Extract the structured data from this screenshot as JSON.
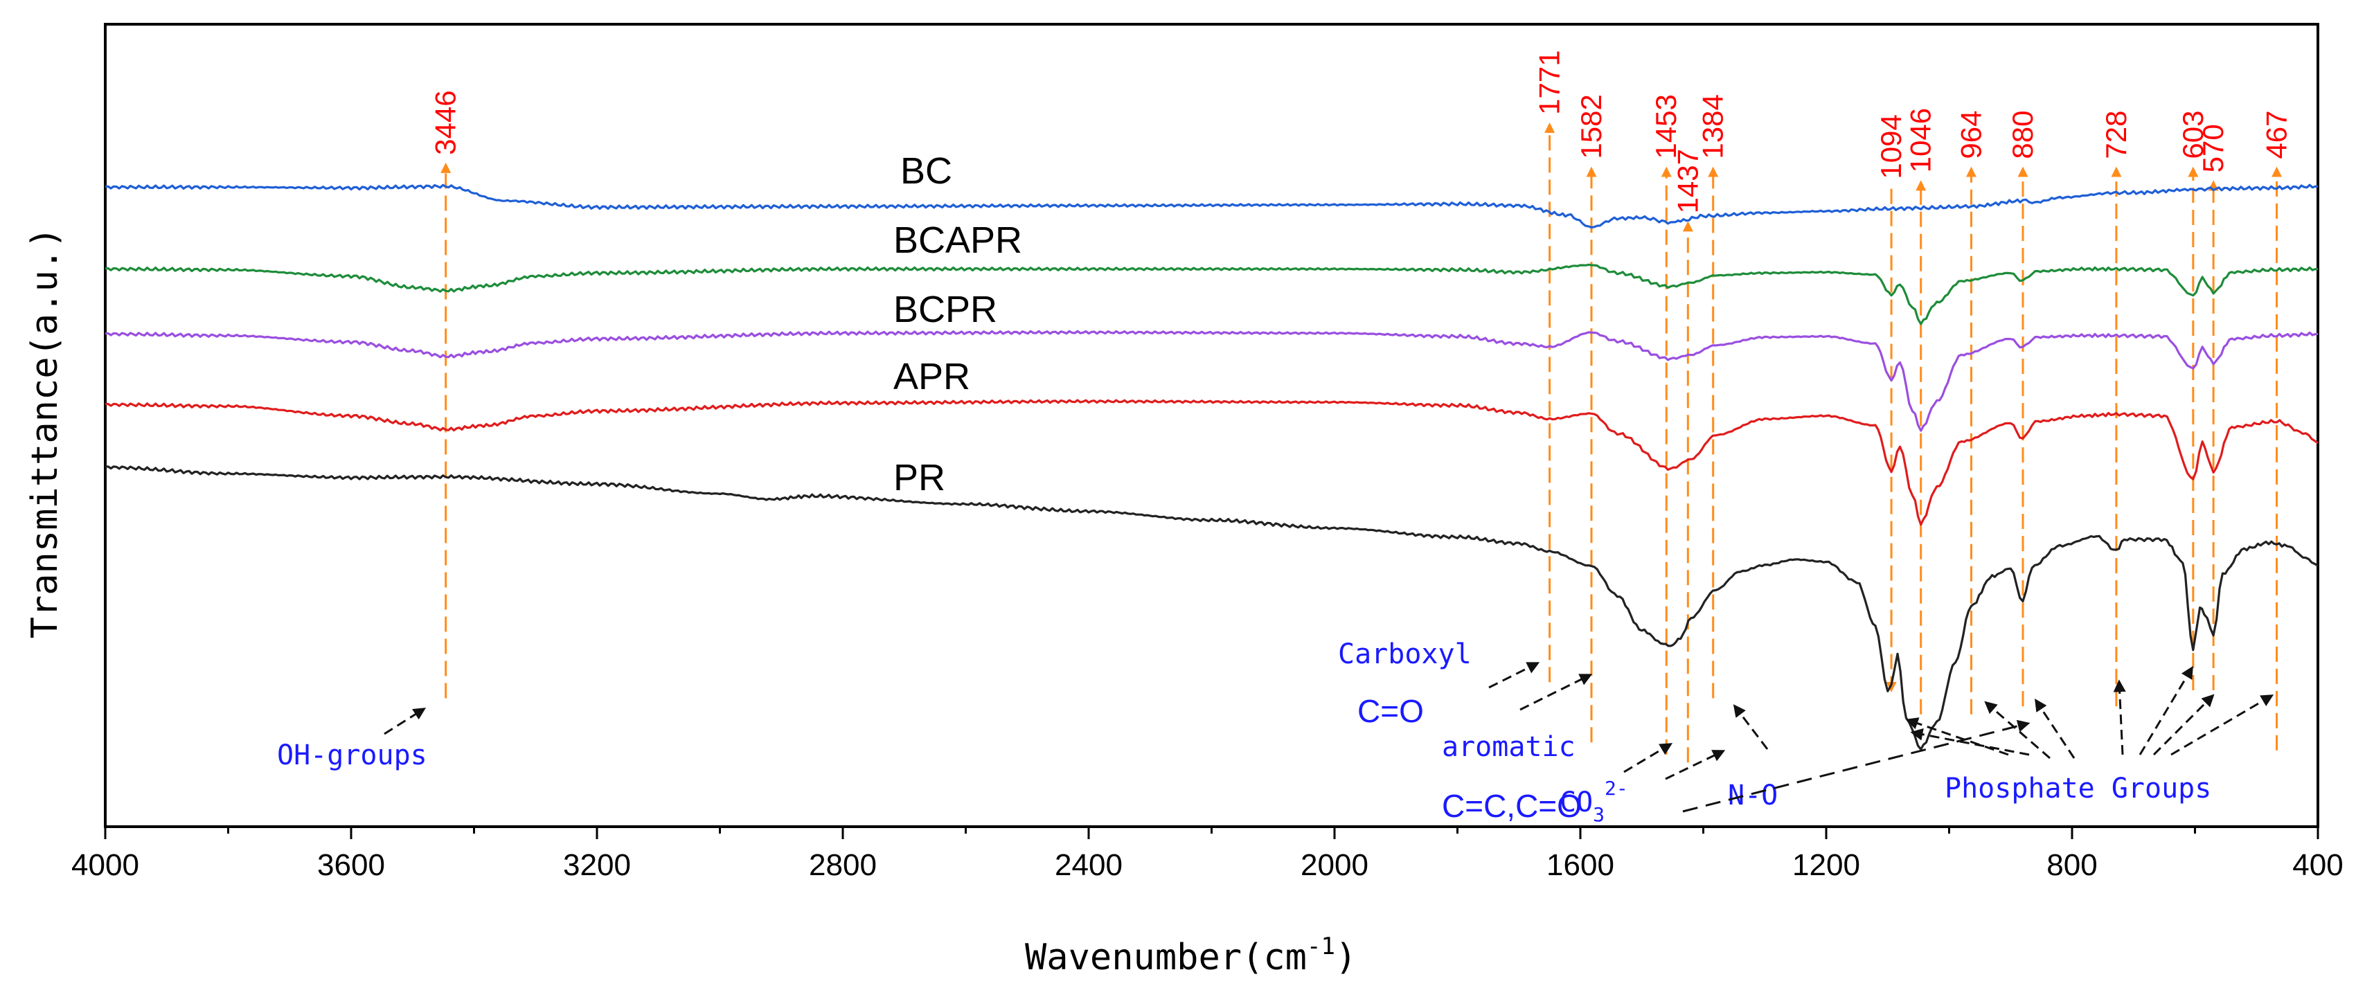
{
  "chart_data": {
    "type": "line",
    "title": "",
    "xlabel": "Wavenumber(cm",
    "xlabel_sup": "-1",
    "xlabel_close": ")",
    "ylabel": "Transmittance(a.u.)",
    "xlim": [
      4000,
      400
    ],
    "ylim": [
      0,
      100
    ],
    "x_ticks": [
      "4000",
      "3600",
      "3200",
      "2800",
      "2400",
      "2000",
      "1600",
      "1200",
      "800",
      "400"
    ],
    "grid": false,
    "series": [
      {
        "name": "BC",
        "color": "#1f5fd6",
        "points": [
          [
            4000,
            79.7
          ],
          [
            3800,
            79.7
          ],
          [
            3600,
            79.6
          ],
          [
            3446,
            79.8
          ],
          [
            3350,
            78
          ],
          [
            3200,
            77.2
          ],
          [
            2800,
            77.3
          ],
          [
            2400,
            77.4
          ],
          [
            2000,
            77.5
          ],
          [
            1800,
            77.6
          ],
          [
            1700,
            77.4
          ],
          [
            1620,
            76.2
          ],
          [
            1582,
            74.7
          ],
          [
            1540,
            75.8
          ],
          [
            1500,
            75.9
          ],
          [
            1453,
            75.3
          ],
          [
            1437,
            75.5
          ],
          [
            1400,
            76.1
          ],
          [
            1300,
            76.5
          ],
          [
            1200,
            76.7
          ],
          [
            1100,
            77
          ],
          [
            1046,
            77.1
          ],
          [
            964,
            77.3
          ],
          [
            880,
            78
          ],
          [
            860,
            77.8
          ],
          [
            820,
            78.4
          ],
          [
            728,
            79
          ],
          [
            700,
            79
          ],
          [
            603,
            79.4
          ],
          [
            570,
            79.5
          ],
          [
            467,
            79.6
          ],
          [
            400,
            79.8
          ]
        ]
      },
      {
        "name": "BCAPR",
        "color": "#1e8c3a",
        "points": [
          [
            4000,
            69.5
          ],
          [
            3800,
            69.4
          ],
          [
            3600,
            68.6
          ],
          [
            3500,
            67.2
          ],
          [
            3446,
            66.8
          ],
          [
            3380,
            67.4
          ],
          [
            3300,
            68.6
          ],
          [
            3200,
            69
          ],
          [
            2800,
            69.5
          ],
          [
            2400,
            69.5
          ],
          [
            2000,
            69.5
          ],
          [
            1800,
            69.4
          ],
          [
            1700,
            69.1
          ],
          [
            1582,
            70
          ],
          [
            1540,
            69
          ],
          [
            1453,
            67.3
          ],
          [
            1420,
            67.8
          ],
          [
            1380,
            68.7
          ],
          [
            1300,
            69
          ],
          [
            1200,
            69.1
          ],
          [
            1120,
            68.8
          ],
          [
            1094,
            66.3
          ],
          [
            1080,
            67.6
          ],
          [
            1060,
            64.8
          ],
          [
            1046,
            62.8
          ],
          [
            1020,
            65.3
          ],
          [
            980,
            68
          ],
          [
            900,
            69
          ],
          [
            880,
            68
          ],
          [
            860,
            69.2
          ],
          [
            780,
            69.5
          ],
          [
            728,
            69.5
          ],
          [
            650,
            69.4
          ],
          [
            603,
            66.2
          ],
          [
            588,
            68.3
          ],
          [
            570,
            66.6
          ],
          [
            540,
            69.1
          ],
          [
            467,
            69.4
          ],
          [
            400,
            69.5
          ]
        ]
      },
      {
        "name": "BCPR",
        "color": "#9a4fe0",
        "points": [
          [
            4000,
            61.4
          ],
          [
            3800,
            61.2
          ],
          [
            3600,
            60.4
          ],
          [
            3500,
            59.3
          ],
          [
            3446,
            58.6
          ],
          [
            3380,
            59.2
          ],
          [
            3300,
            60.3
          ],
          [
            3200,
            60.8
          ],
          [
            2800,
            61.5
          ],
          [
            2400,
            61.6
          ],
          [
            2000,
            61.5
          ],
          [
            1800,
            61.1
          ],
          [
            1700,
            60.2
          ],
          [
            1650,
            59.8
          ],
          [
            1582,
            61.6
          ],
          [
            1540,
            60.5
          ],
          [
            1453,
            58.3
          ],
          [
            1420,
            58.8
          ],
          [
            1380,
            60
          ],
          [
            1300,
            61
          ],
          [
            1200,
            61.1
          ],
          [
            1120,
            60.2
          ],
          [
            1094,
            55.7
          ],
          [
            1080,
            57.9
          ],
          [
            1060,
            51.9
          ],
          [
            1046,
            49.5
          ],
          [
            1020,
            53
          ],
          [
            980,
            58.8
          ],
          [
            900,
            60.8
          ],
          [
            880,
            59.7
          ],
          [
            860,
            61
          ],
          [
            780,
            61.2
          ],
          [
            728,
            61.2
          ],
          [
            650,
            61.1
          ],
          [
            603,
            57.1
          ],
          [
            588,
            59.6
          ],
          [
            570,
            57.8
          ],
          [
            540,
            60.8
          ],
          [
            467,
            61.2
          ],
          [
            400,
            61.4
          ]
        ]
      },
      {
        "name": "APR",
        "color": "#e01c1c",
        "points": [
          [
            4000,
            52.6
          ],
          [
            3800,
            52.4
          ],
          [
            3600,
            51.2
          ],
          [
            3500,
            50.2
          ],
          [
            3446,
            49.5
          ],
          [
            3380,
            50
          ],
          [
            3300,
            51.2
          ],
          [
            3200,
            51.8
          ],
          [
            2800,
            52.8
          ],
          [
            2400,
            53
          ],
          [
            2000,
            52.9
          ],
          [
            1800,
            52.5
          ],
          [
            1700,
            51.6
          ],
          [
            1650,
            50.8
          ],
          [
            1582,
            51.5
          ],
          [
            1540,
            49
          ],
          [
            1453,
            44.6
          ],
          [
            1420,
            45.8
          ],
          [
            1380,
            48.8
          ],
          [
            1300,
            50.8
          ],
          [
            1200,
            51.2
          ],
          [
            1120,
            50
          ],
          [
            1094,
            44.3
          ],
          [
            1080,
            47.4
          ],
          [
            1060,
            41.4
          ],
          [
            1046,
            37.8
          ],
          [
            1020,
            42.3
          ],
          [
            980,
            48
          ],
          [
            900,
            50.3
          ],
          [
            880,
            48.3
          ],
          [
            860,
            50.5
          ],
          [
            780,
            51.2
          ],
          [
            728,
            51.4
          ],
          [
            650,
            51.2
          ],
          [
            603,
            43.3
          ],
          [
            588,
            47.8
          ],
          [
            570,
            44.3
          ],
          [
            540,
            49.8
          ],
          [
            467,
            50.5
          ],
          [
            420,
            49
          ],
          [
            400,
            47.8
          ]
        ]
      },
      {
        "name": "PR",
        "color": "#222222",
        "points": [
          [
            4000,
            44.8
          ],
          [
            3800,
            44
          ],
          [
            3600,
            43.5
          ],
          [
            3446,
            43.6
          ],
          [
            3200,
            42.7
          ],
          [
            3000,
            41.5
          ],
          [
            2920,
            40.8
          ],
          [
            2850,
            41.2
          ],
          [
            2600,
            40.2
          ],
          [
            2400,
            39.3
          ],
          [
            2200,
            38.2
          ],
          [
            2000,
            37.2
          ],
          [
            1800,
            36.1
          ],
          [
            1700,
            35.3
          ],
          [
            1650,
            34.3
          ],
          [
            1582,
            32.5
          ],
          [
            1540,
            28.8
          ],
          [
            1500,
            24.5
          ],
          [
            1465,
            22.8
          ],
          [
            1453,
            22.5
          ],
          [
            1437,
            23.5
          ],
          [
            1420,
            26
          ],
          [
            1380,
            29.5
          ],
          [
            1340,
            31.8
          ],
          [
            1300,
            32.6
          ],
          [
            1250,
            33.3
          ],
          [
            1200,
            33
          ],
          [
            1150,
            30.5
          ],
          [
            1120,
            25
          ],
          [
            1100,
            17
          ],
          [
            1094,
            17.8
          ],
          [
            1084,
            21.5
          ],
          [
            1070,
            13.5
          ],
          [
            1046,
            9.8
          ],
          [
            1020,
            13
          ],
          [
            990,
            20.5
          ],
          [
            964,
            27.5
          ],
          [
            930,
            31.2
          ],
          [
            900,
            32.2
          ],
          [
            880,
            28
          ],
          [
            865,
            32.4
          ],
          [
            820,
            35
          ],
          [
            760,
            36.2
          ],
          [
            728,
            34.4
          ],
          [
            715,
            35.8
          ],
          [
            650,
            35.8
          ],
          [
            620,
            33
          ],
          [
            603,
            22
          ],
          [
            592,
            27.5
          ],
          [
            585,
            26.5
          ],
          [
            570,
            24
          ],
          [
            555,
            31.5
          ],
          [
            520,
            34.6
          ],
          [
            480,
            35.4
          ],
          [
            450,
            35
          ],
          [
            420,
            33.5
          ],
          [
            400,
            32.5
          ]
        ]
      }
    ],
    "peaks": [
      {
        "label": "3446",
        "x": 3446,
        "top": 82.5,
        "bottom": 16,
        "dir": "up"
      },
      {
        "label": "1771",
        "x": 1650,
        "top": 87.5,
        "bottom": 18,
        "dir": "up"
      },
      {
        "label": "1582",
        "x": 1582,
        "top": 82,
        "bottom": 10.5,
        "dir": "up"
      },
      {
        "label": "1453",
        "x": 1460,
        "top": 82,
        "bottom": 9,
        "dir": "up"
      },
      {
        "label": "1437",
        "x": 1425,
        "top": 75.2,
        "bottom": 8,
        "dir": "up"
      },
      {
        "label": "1384",
        "x": 1384,
        "top": 82,
        "bottom": 16,
        "dir": "up"
      },
      {
        "label": "1094",
        "x": 1094,
        "top": 79.5,
        "bottom": 17,
        "dir": "down"
      },
      {
        "label": "1046",
        "x": 1046,
        "top": 80.3,
        "bottom": 14,
        "dir": "up"
      },
      {
        "label": "964",
        "x": 964,
        "top": 82,
        "bottom": 14,
        "dir": "up"
      },
      {
        "label": "880",
        "x": 880,
        "top": 82,
        "bottom": 15,
        "dir": "up"
      },
      {
        "label": "728",
        "x": 728,
        "top": 82,
        "bottom": 15,
        "dir": "up"
      },
      {
        "label": "603",
        "x": 603,
        "top": 82,
        "bottom": 17,
        "dir": "up"
      },
      {
        "label": "570",
        "x": 570,
        "top": 80.3,
        "bottom": 17,
        "dir": "up"
      },
      {
        "label": "467",
        "x": 467,
        "top": 82,
        "bottom": 9.5,
        "dir": "up"
      }
    ],
    "annotations": {
      "oh": "OH-groups",
      "carboxyl": "Carboxyl",
      "co": "C=O",
      "aromatic": "aromatic",
      "cc": "C=C,C=O",
      "co3": "CO",
      "co3_sub": "3",
      "co3_sup": "2-",
      "no": "N-O",
      "phosphate": "Phosphate Groups"
    }
  }
}
